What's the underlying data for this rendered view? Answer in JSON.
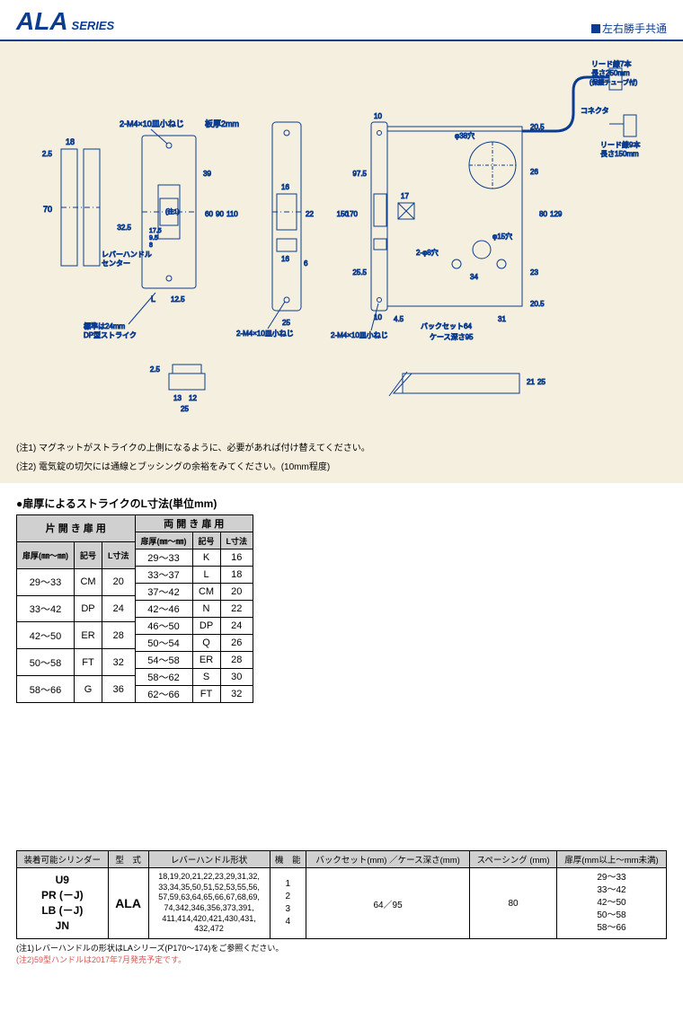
{
  "header": {
    "series_main": "ALA",
    "series_sub": "SERIES",
    "right_label": "左右勝手共通"
  },
  "diagram": {
    "notes": [
      "(注1) マグネットがストライクの上側になるように、必要があれば付け替えてください。",
      "(注2) 電気錠の切欠には通線とブッシングの余裕をみてください。(10mm程度)"
    ],
    "labels": {
      "screw_a": "2-M4×10皿小ねじ",
      "plate_thick": "板厚2mm",
      "lever_center": "レバーハンドル\nセンター",
      "std_strike": "標準は24mm\nDP型ストライク",
      "screw_b": "2-M4×10皿小ねじ",
      "screw_c": "2-M4×10皿小ねじ",
      "phi38": "φ38穴",
      "phi15": "φ15穴",
      "phi8": "2-φ8穴",
      "backset": "バックセット64",
      "case_depth": "ケース深さ95",
      "connector": "コネクタ",
      "lead7": "リード線7本\n長さ250mm\n(保護チューブ付)",
      "lead9": "リード線9本\n長さ150mm",
      "note1_mark": "(注1)",
      "L": "L",
      "dims": {
        "d18": "18",
        "d2_5": "2.5",
        "d70": "70",
        "d39": "39",
        "d60": "60",
        "d90": "90",
        "d110": "110",
        "d32_5": "32.5",
        "d17_5": "17.5",
        "d9_5": "9.5",
        "d8": "8",
        "d12_5": "12.5",
        "d25": "25",
        "d13": "13",
        "d12": "12",
        "d16": "16",
        "d22": "22",
        "d6": "6",
        "d10": "10",
        "d170": "170",
        "d150": "150",
        "d97_5": "97.5",
        "d25_5": "25.5",
        "d4_5": "4.5",
        "d31": "31",
        "d17": "17",
        "d34": "34",
        "d26": "26",
        "d80": "80",
        "d129": "129",
        "d23": "23",
        "d20_5": "20.5",
        "d21": "21",
        "d64": "64",
        "d95": "95"
      }
    }
  },
  "strike": {
    "title": "●扉厚によるストライクのL寸法(単位mm)",
    "single": {
      "header": "片 開 き 扉 用",
      "cols": [
        "扉厚(㎜～㎜)",
        "記号",
        "L寸法"
      ],
      "rows": [
        [
          "29～33",
          "CM",
          "20"
        ],
        [
          "33～42",
          "DP",
          "24"
        ],
        [
          "42～50",
          "ER",
          "28"
        ],
        [
          "50～58",
          "FT",
          "32"
        ],
        [
          "58～66",
          "G",
          "36"
        ]
      ]
    },
    "double": {
      "header": "両 開 き 扉 用",
      "cols": [
        "扉厚(㎜～㎜)",
        "記号",
        "L寸法"
      ],
      "rows": [
        [
          "29～33",
          "K",
          "16"
        ],
        [
          "33～37",
          "L",
          "18"
        ],
        [
          "37～42",
          "CM",
          "20"
        ],
        [
          "42～46",
          "N",
          "22"
        ],
        [
          "46～50",
          "DP",
          "24"
        ],
        [
          "50～54",
          "Q",
          "26"
        ],
        [
          "54～58",
          "ER",
          "28"
        ],
        [
          "58～62",
          "S",
          "30"
        ],
        [
          "62～66",
          "FT",
          "32"
        ]
      ]
    }
  },
  "spec": {
    "headers": [
      "装着可能シリンダー",
      "型　式",
      "レバーハンドル形状",
      "機　能",
      "バックセット(mm) ／ケース深さ(mm)",
      "スペーシング (mm)",
      "扉厚(mm以上～mm未満)"
    ],
    "cylinder": "U9\nPR (－J)\nLB (－J)\nJN",
    "model": "ALA",
    "lever": "18,19,20,21,22,23,29,31,32,\n33,34,35,50,51,52,53,55,56,\n57,59,63,64,65,66,67,68,69,\n74,342,346,356,373,391,\n411,414,420,421,430,431,\n432,472",
    "func": "1\n2\n3\n4",
    "backset": "64／95",
    "spacing": "80",
    "door": "29～33\n33～42\n42～50\n50～58\n58～66"
  },
  "footnotes": {
    "fn1": "(注1)レバーハンドルの形状はLAシリーズ(P170～174)をご参照ください。",
    "fn2": "(注2)59型ハンドルは2017年7月発売予定です。"
  },
  "colors": {
    "brand": "#0b3c8f",
    "diagram_bg": "#f5efdf",
    "table_hdr": "#d0d0d0"
  }
}
